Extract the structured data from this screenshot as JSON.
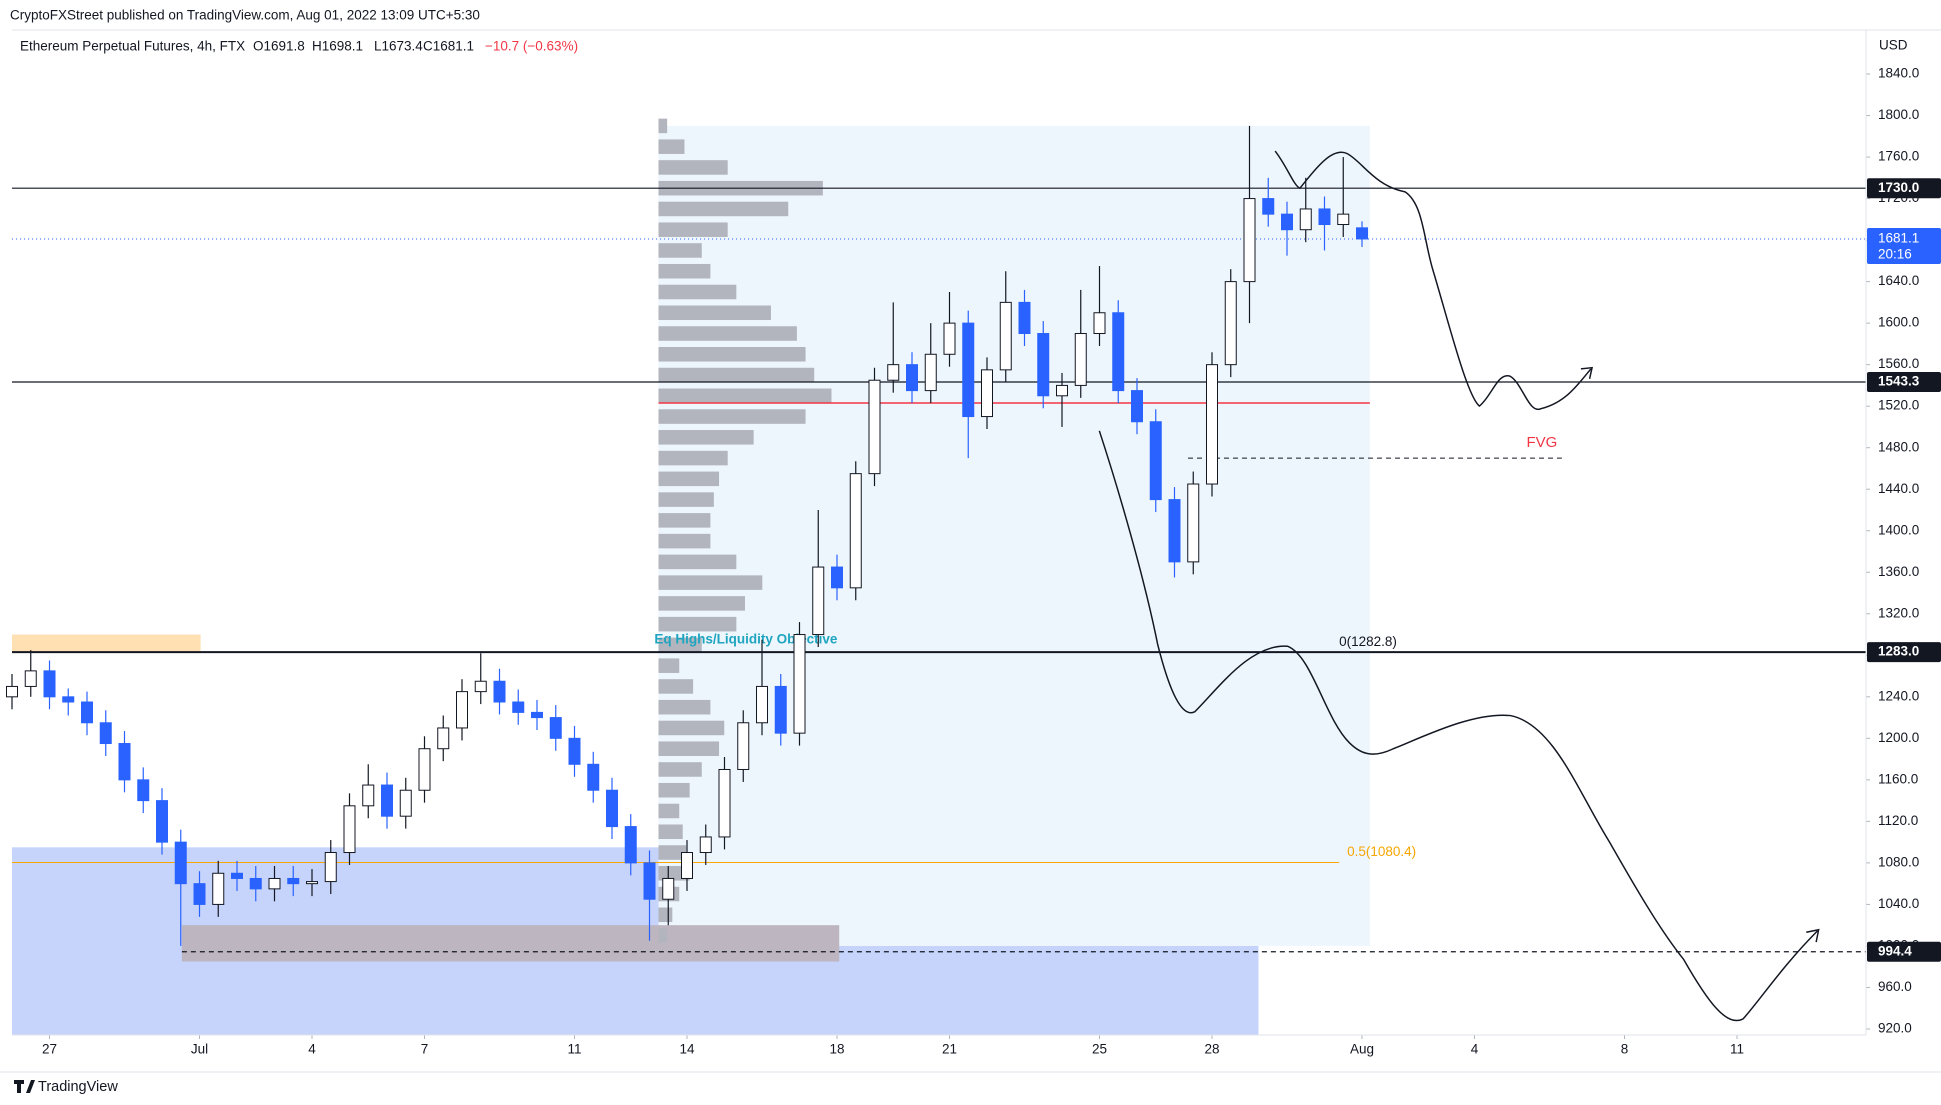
{
  "header": {
    "publisher": "CryptoFXStreet published on TradingView.com, Aug 01, 2022 13:09 UTC+5:30",
    "footer": "TradingView"
  },
  "chart_data": {
    "type": "candlestick",
    "title": "Ethereum Perpetual Futures, 4h, FTX",
    "ohlc_legend": [
      "O1691.8",
      "H1698.1",
      "L1673.4",
      "C1681.1",
      "−10.7 (−0.63%)"
    ],
    "y_axis_label": "USD",
    "x": [
      177,
      177.5,
      178,
      178.5,
      179,
      179.5,
      180,
      180.5,
      181,
      181.5,
      182,
      182.5,
      183,
      183.5,
      184,
      184.5,
      185,
      185.5,
      186,
      186.5,
      187,
      187.5,
      188,
      188.5,
      189,
      189.5,
      190,
      190.5,
      191,
      191.5,
      192,
      192.5,
      193,
      193.5,
      194,
      194.5,
      195,
      195.5,
      196,
      196.5,
      197,
      197.5,
      198,
      198.5,
      199,
      199.5,
      200,
      200.5,
      201,
      201.5,
      202,
      202.5,
      203,
      203.5,
      204,
      204.5,
      205,
      205.5,
      206,
      206.5,
      207,
      207.5,
      208,
      208.5,
      209,
      209.5,
      210,
      210.5,
      211,
      211.5,
      212,
      212.5,
      213
    ],
    "open": [
      1240,
      1250,
      1265,
      1240,
      1235,
      1215,
      1195,
      1160,
      1140,
      1100,
      1060,
      1040,
      1070,
      1065,
      1055,
      1065,
      1060,
      1062,
      1090,
      1135,
      1155,
      1125,
      1150,
      1190,
      1210,
      1245,
      1255,
      1235,
      1225,
      1220,
      1200,
      1175,
      1150,
      1115,
      1080,
      1045,
      1065,
      1090,
      1105,
      1170,
      1215,
      1250,
      1205,
      1300,
      1365,
      1345,
      1455,
      1545,
      1560,
      1535,
      1570,
      1600,
      1510,
      1555,
      1620,
      1590,
      1530,
      1540,
      1590,
      1610,
      1535,
      1505,
      1430,
      1370,
      1445,
      1560,
      1640,
      1720,
      1705,
      1690,
      1710,
      1695,
      1691.8
    ],
    "high": [
      1262,
      1285,
      1275,
      1248,
      1245,
      1227,
      1207,
      1172,
      1152,
      1112,
      1072,
      1082,
      1082,
      1077,
      1077,
      1077,
      1074,
      1102,
      1147,
      1175,
      1167,
      1162,
      1202,
      1222,
      1257,
      1282,
      1267,
      1247,
      1237,
      1232,
      1212,
      1187,
      1162,
      1127,
      1092,
      1077,
      1102,
      1117,
      1182,
      1227,
      1295,
      1262,
      1312,
      1420,
      1377,
      1467,
      1557,
      1620,
      1572,
      1600,
      1630,
      1612,
      1567,
      1650,
      1632,
      1602,
      1552,
      1632,
      1655,
      1622,
      1547,
      1517,
      1442,
      1457,
      1572,
      1652,
      1790,
      1740,
      1717,
      1740,
      1722,
      1760,
      1698.1
    ],
    "low": [
      1228,
      1240,
      1228,
      1222,
      1203,
      1183,
      1148,
      1128,
      1088,
      1000,
      1028,
      1028,
      1053,
      1043,
      1043,
      1048,
      1048,
      1050,
      1078,
      1123,
      1113,
      1113,
      1138,
      1178,
      1198,
      1233,
      1223,
      1213,
      1208,
      1188,
      1163,
      1138,
      1103,
      1068,
      1005,
      1020,
      1053,
      1078,
      1093,
      1158,
      1203,
      1193,
      1193,
      1288,
      1333,
      1333,
      1443,
      1533,
      1523,
      1523,
      1558,
      1470,
      1498,
      1543,
      1578,
      1518,
      1500,
      1528,
      1578,
      1523,
      1493,
      1418,
      1355,
      1358,
      1433,
      1548,
      1600,
      1693,
      1665,
      1678,
      1670,
      1683,
      1673.4
    ],
    "close": [
      1250,
      1265,
      1240,
      1235,
      1215,
      1195,
      1160,
      1140,
      1100,
      1060,
      1040,
      1070,
      1065,
      1055,
      1065,
      1060,
      1062,
      1090,
      1135,
      1155,
      1125,
      1150,
      1190,
      1210,
      1245,
      1255,
      1235,
      1225,
      1220,
      1200,
      1175,
      1150,
      1115,
      1080,
      1045,
      1065,
      1090,
      1105,
      1170,
      1215,
      1250,
      1205,
      1300,
      1365,
      1345,
      1455,
      1545,
      1560,
      1535,
      1570,
      1600,
      1510,
      1555,
      1620,
      1590,
      1530,
      1540,
      1590,
      1610,
      1535,
      1505,
      1430,
      1370,
      1445,
      1560,
      1640,
      1720,
      1705,
      1690,
      1710,
      1695,
      1705,
      1681.1
    ],
    "up_color": "#ffffff",
    "down_color": "#2962ff",
    "xlim": [
      177,
      226.44
    ],
    "xticks": [
      {
        "value": 178,
        "label": "27"
      },
      {
        "value": 182,
        "label": "Jul"
      },
      {
        "value": 185,
        "label": "4"
      },
      {
        "value": 188,
        "label": "7"
      },
      {
        "value": 192,
        "label": "11"
      },
      {
        "value": 195,
        "label": "14"
      },
      {
        "value": 199,
        "label": "18"
      },
      {
        "value": 202,
        "label": "21"
      },
      {
        "value": 206,
        "label": "25"
      },
      {
        "value": 209,
        "label": "28"
      },
      {
        "value": 213,
        "label": "Aug"
      },
      {
        "value": 216,
        "label": "4"
      },
      {
        "value": 220,
        "label": "8"
      },
      {
        "value": 223,
        "label": "11"
      }
    ],
    "ylim": [
      914.2,
      1882.4
    ],
    "yticks": [
      {
        "value": 920,
        "label": "920.0"
      },
      {
        "value": 960,
        "label": "960.0"
      },
      {
        "value": 1000,
        "label": "1000.0"
      },
      {
        "value": 1040,
        "label": "1040.0"
      },
      {
        "value": 1080,
        "label": "1080.0"
      },
      {
        "value": 1120,
        "label": "1120.0"
      },
      {
        "value": 1160,
        "label": "1160.0"
      },
      {
        "value": 1200,
        "label": "1200.0"
      },
      {
        "value": 1240,
        "label": "1240.0"
      },
      {
        "value": 1280,
        "label": "1280.0"
      },
      {
        "value": 1320,
        "label": "1320.0"
      },
      {
        "value": 1360,
        "label": "1360.0"
      },
      {
        "value": 1400,
        "label": "1400.0"
      },
      {
        "value": 1440,
        "label": "1440.0"
      },
      {
        "value": 1480,
        "label": "1480.0"
      },
      {
        "value": 1520,
        "label": "1520.0"
      },
      {
        "value": 1560,
        "label": "1560.0"
      },
      {
        "value": 1600,
        "label": "1600.0"
      },
      {
        "value": 1640,
        "label": "1640.0"
      },
      {
        "value": 1680,
        "label": "1680.0"
      },
      {
        "value": 1720,
        "label": "1720.0"
      },
      {
        "value": 1760,
        "label": "1760.0"
      },
      {
        "value": 1800,
        "label": "1800.0"
      },
      {
        "value": 1840,
        "label": "1840.0"
      }
    ],
    "levels": [
      {
        "value": 1730,
        "label": "1730.0"
      },
      {
        "value": 1543.3,
        "label": "1543.3"
      },
      {
        "value": 1283,
        "label": "1283.0"
      },
      {
        "value": 994.4,
        "label": "994.4"
      }
    ],
    "last_price": {
      "value": 1681.1,
      "label": "1681.1",
      "countdown": "20:16",
      "color": "#2962ff"
    },
    "volume_profile": {
      "start": 194.24,
      "end": 213.21,
      "levels": [
        1010,
        1030,
        1050,
        1070,
        1090,
        1110,
        1130,
        1150,
        1170,
        1190,
        1210,
        1230,
        1250,
        1270,
        1290,
        1310,
        1330,
        1350,
        1370,
        1390,
        1410,
        1430,
        1450,
        1470,
        1490,
        1510,
        1530,
        1550,
        1570,
        1590,
        1610,
        1630,
        1650,
        1670,
        1690,
        1710,
        1730,
        1750,
        1770,
        1790
      ],
      "values": [
        5,
        8,
        12,
        18,
        16,
        14,
        12,
        18,
        25,
        35,
        38,
        30,
        20,
        12,
        25,
        45,
        50,
        60,
        45,
        30,
        30,
        32,
        35,
        40,
        55,
        85,
        100,
        90,
        85,
        80,
        65,
        45,
        30,
        25,
        40,
        75,
        95,
        40,
        15,
        5
      ],
      "poc": 1523
    },
    "fvg": {
      "label": "FVG",
      "value": 1470,
      "start": 208.36,
      "end": 218.33
    },
    "fib": [
      {
        "value": 1282.8,
        "label": "0(1282.8)"
      },
      {
        "value": 1080.4,
        "label": "0.5(1080.4)",
        "start": 177,
        "end": 212.39
      }
    ],
    "annotation": "Eq Highs/Liquidity Objective",
    "zones": [
      {
        "x": [
          177,
          182.03
        ],
        "y": [
          1283,
          1300
        ],
        "color": "#ffe0b2"
      },
      {
        "x": [
          177,
          210.24
        ],
        "y": [
          914.2,
          1095
        ],
        "color": "#c6d4fb"
      },
      {
        "x": [
          194.24,
          213.21
        ],
        "y": [
          1000,
          1790
        ],
        "color": "#eef6fd"
      },
      {
        "x": [
          181.53,
          199.06
        ],
        "y": [
          985,
          1020
        ],
        "color": "#bdb5c0"
      }
    ]
  }
}
